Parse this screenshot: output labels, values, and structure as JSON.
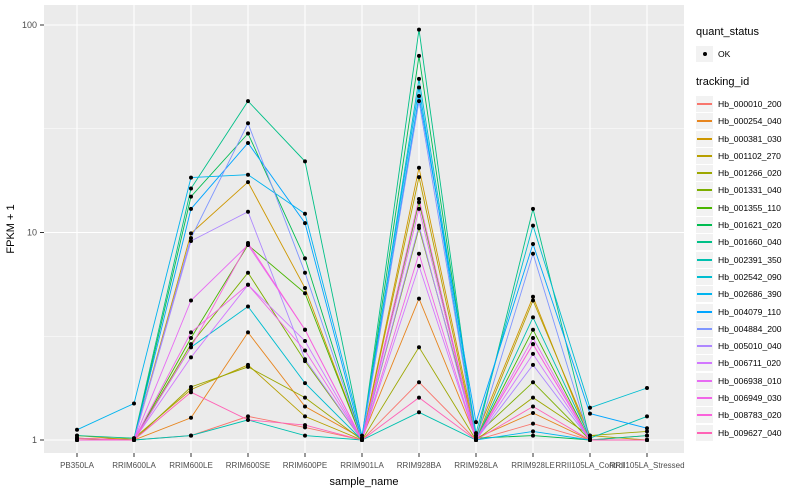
{
  "figure": {
    "background": "#FFFFFF",
    "panel_background": "#EBEBEB",
    "grid_color": "#FFFFFF",
    "axis_text_color": "#4D4D4D",
    "axis_title_color": "#000000",
    "tick_mark_color": "#333333",
    "point_color": "#000000",
    "legend_key_background": "#F2F2F2"
  },
  "axes": {
    "y_title": "FPKM + 1",
    "x_title": "sample_name",
    "y_tick_labels": [
      "1",
      "10",
      "100"
    ]
  },
  "legend": {
    "quant_title": "quant_status",
    "quant_items": [
      {
        "label": "OK",
        "marker": "black-point"
      }
    ],
    "tracking_title": "tracking_id"
  },
  "chart_data": {
    "type": "line",
    "title": "",
    "xlabel": "sample_name",
    "ylabel": "FPKM + 1",
    "y_scale": "log10",
    "y_ticks": [
      1,
      10,
      100
    ],
    "y_minor_ticks": [
      3.162,
      31.62
    ],
    "grid": true,
    "legend_position": "right",
    "marker": "black point on every observation",
    "categories": [
      "PB350LA",
      "RRIM600LA",
      "RRIM600LE",
      "RRIM600SE",
      "RRIM600PE",
      "RRIM901LA",
      "RRIM928BA",
      "RRIM928LA",
      "RRIM928LE",
      "RRII105LA_Control",
      "RRII105LA_Stressed"
    ],
    "series": [
      {
        "name": "Hb_000010_200",
        "color": "#F8766D",
        "values": [
          1.02,
          1.0,
          1.05,
          1.3,
          1.15,
          1.0,
          1.9,
          1.0,
          1.2,
          1.0,
          1.05
        ]
      },
      {
        "name": "Hb_000254_040",
        "color": "#E7851E",
        "values": [
          1.0,
          1.0,
          1.28,
          3.3,
          1.45,
          1.02,
          4.8,
          1.02,
          1.35,
          1.0,
          1.0
        ]
      },
      {
        "name": "Hb_000381_030",
        "color": "#CE9700",
        "values": [
          1.05,
          1.0,
          9.9,
          17.5,
          5.4,
          1.0,
          20.5,
          1.05,
          4.9,
          1.0,
          1.0
        ]
      },
      {
        "name": "Hb_001102_270",
        "color": "#B79F00",
        "values": [
          1.0,
          1.02,
          1.75,
          2.3,
          1.3,
          1.0,
          18.5,
          1.0,
          4.7,
          1.05,
          1.0
        ]
      },
      {
        "name": "Hb_001266_020",
        "color": "#9DA700",
        "values": [
          1.0,
          1.0,
          1.8,
          2.25,
          1.6,
          1.0,
          2.8,
          1.0,
          1.6,
          1.05,
          1.1
        ]
      },
      {
        "name": "Hb_001331_040",
        "color": "#7CAE00",
        "values": [
          1.0,
          1.0,
          2.9,
          6.4,
          2.4,
          1.0,
          10.5,
          1.05,
          1.9,
          1.0,
          1.0
        ]
      },
      {
        "name": "Hb_001355_110",
        "color": "#49B500",
        "values": [
          1.02,
          1.0,
          3.1,
          8.7,
          5.1,
          1.0,
          14.0,
          1.0,
          3.4,
          1.0,
          1.0
        ]
      },
      {
        "name": "Hb_001621_020",
        "color": "#00BC51",
        "values": [
          1.0,
          1.0,
          14.9,
          30.0,
          7.5,
          1.0,
          71.0,
          1.02,
          1.05,
          1.0,
          1.0
        ]
      },
      {
        "name": "Hb_001660_040",
        "color": "#00C087",
        "values": [
          1.05,
          1.02,
          16.3,
          43.0,
          22.0,
          1.02,
          95.0,
          1.0,
          13.0,
          1.0,
          1.05
        ]
      },
      {
        "name": "Hb_002391_350",
        "color": "#00C0AF",
        "values": [
          1.0,
          1.0,
          1.05,
          1.25,
          1.05,
          1.0,
          1.36,
          1.0,
          3.9,
          1.02,
          1.3
        ]
      },
      {
        "name": "Hb_002542_090",
        "color": "#00BDD0",
        "values": [
          1.0,
          1.0,
          2.8,
          4.4,
          1.88,
          1.0,
          55.0,
          1.08,
          10.8,
          1.43,
          1.78
        ]
      },
      {
        "name": "Hb_002686_390",
        "color": "#00B4EF",
        "values": [
          1.12,
          1.5,
          18.4,
          19.0,
          12.3,
          1.05,
          50.0,
          1.0,
          1.1,
          1.0,
          1.0
        ]
      },
      {
        "name": "Hb_004079_110",
        "color": "#00A5FF",
        "values": [
          1.0,
          1.0,
          13.0,
          27.0,
          11.1,
          1.0,
          45.5,
          1.22,
          8.8,
          1.34,
          1.14
        ]
      },
      {
        "name": "Hb_004884_200",
        "color": "#7F96FF",
        "values": [
          1.0,
          1.0,
          9.4,
          33.6,
          6.4,
          1.0,
          43.0,
          1.0,
          7.9,
          1.0,
          1.0
        ]
      },
      {
        "name": "Hb_005010_040",
        "color": "#AE87FF",
        "values": [
          1.0,
          1.0,
          9.1,
          12.6,
          2.45,
          1.0,
          10.8,
          1.0,
          2.3,
          1.0,
          1.0
        ]
      },
      {
        "name": "Hb_006711_020",
        "color": "#D277FF",
        "values": [
          1.0,
          1.0,
          2.5,
          5.6,
          3.0,
          1.0,
          6.9,
          1.0,
          2.6,
          1.0,
          1.0
        ]
      },
      {
        "name": "Hb_006938_010",
        "color": "#E76BF3",
        "values": [
          1.0,
          1.0,
          4.7,
          8.7,
          3.4,
          1.0,
          13.0,
          1.0,
          3.1,
          1.0,
          1.0
        ]
      },
      {
        "name": "Hb_006949_030",
        "color": "#F166E8",
        "values": [
          1.0,
          1.0,
          3.3,
          5.6,
          2.7,
          1.0,
          7.9,
          1.0,
          2.9,
          1.0,
          1.0
        ]
      },
      {
        "name": "Hb_008783_020",
        "color": "#FA62DB",
        "values": [
          1.0,
          1.0,
          2.8,
          8.9,
          3.4,
          1.0,
          14.5,
          1.0,
          2.9,
          1.0,
          1.0
        ]
      },
      {
        "name": "Hb_009627_040",
        "color": "#FF63B6",
        "values": [
          1.02,
          1.0,
          1.7,
          1.25,
          1.18,
          1.0,
          1.6,
          1.0,
          1.45,
          1.0,
          1.0
        ]
      }
    ]
  }
}
